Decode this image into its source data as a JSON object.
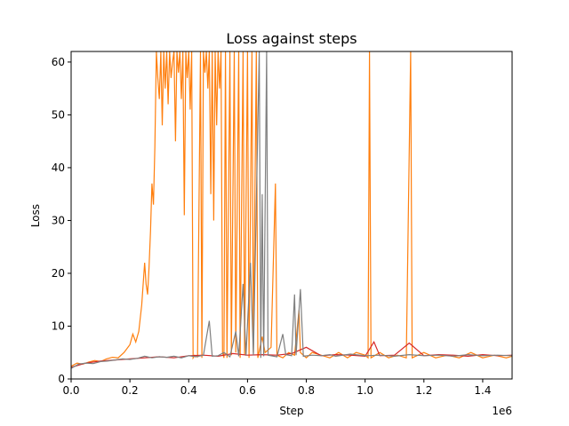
{
  "chart_data": {
    "type": "line",
    "title": "Loss against steps",
    "xlabel": "Step",
    "ylabel": "Loss",
    "x_offset_label": "1e6",
    "xlim": [
      0,
      1500000
    ],
    "ylim": [
      0,
      62
    ],
    "x_scale_factor": 1000000,
    "x_ticks": [
      0.0,
      0.2,
      0.4,
      0.6,
      0.8,
      1.0,
      1.2,
      1.4
    ],
    "y_ticks": [
      0,
      10,
      20,
      30,
      40,
      50,
      60
    ],
    "grid": false,
    "series": [
      {
        "color": "#ff7f0e",
        "points": [
          [
            0,
            2.4
          ],
          [
            20000,
            3.0
          ],
          [
            40000,
            2.8
          ],
          [
            60000,
            3.2
          ],
          [
            80000,
            3.5
          ],
          [
            100000,
            3.3
          ],
          [
            120000,
            3.8
          ],
          [
            140000,
            4.1
          ],
          [
            160000,
            4.0
          ],
          [
            180000,
            5.0
          ],
          [
            200000,
            6.5
          ],
          [
            210000,
            8.5
          ],
          [
            220000,
            7.0
          ],
          [
            230000,
            9.0
          ],
          [
            240000,
            14.0
          ],
          [
            250000,
            22.0
          ],
          [
            255000,
            18.0
          ],
          [
            260000,
            16.0
          ],
          [
            265000,
            21.0
          ],
          [
            270000,
            28.0
          ],
          [
            275000,
            37.0
          ],
          [
            280000,
            33.0
          ],
          [
            285000,
            44.0
          ],
          [
            290000,
            62.0
          ],
          [
            295000,
            57.0
          ],
          [
            300000,
            53.0
          ],
          [
            305000,
            62.0
          ],
          [
            310000,
            48.0
          ],
          [
            315000,
            62.0
          ],
          [
            320000,
            55.0
          ],
          [
            325000,
            62.0
          ],
          [
            330000,
            52.0
          ],
          [
            335000,
            62.0
          ],
          [
            340000,
            57.0
          ],
          [
            345000,
            60.0
          ],
          [
            350000,
            62.0
          ],
          [
            355000,
            45.0
          ],
          [
            360000,
            62.0
          ],
          [
            365000,
            58.0
          ],
          [
            370000,
            62.0
          ],
          [
            375000,
            53.0
          ],
          [
            380000,
            62.0
          ],
          [
            385000,
            31.0
          ],
          [
            390000,
            62.0
          ],
          [
            395000,
            57.0
          ],
          [
            400000,
            62.0
          ],
          [
            405000,
            51.0
          ],
          [
            410000,
            62.0
          ],
          [
            415000,
            4.0
          ],
          [
            420000,
            4.5
          ],
          [
            430000,
            4.2
          ],
          [
            440000,
            62.0
          ],
          [
            445000,
            4.0
          ],
          [
            450000,
            62.0
          ],
          [
            455000,
            58.0
          ],
          [
            460000,
            62.0
          ],
          [
            465000,
            55.0
          ],
          [
            470000,
            62.0
          ],
          [
            475000,
            35.0
          ],
          [
            480000,
            62.0
          ],
          [
            485000,
            30.0
          ],
          [
            490000,
            62.0
          ],
          [
            495000,
            48.0
          ],
          [
            500000,
            62.0
          ],
          [
            505000,
            55.0
          ],
          [
            510000,
            62.0
          ],
          [
            515000,
            5.0
          ],
          [
            520000,
            4.0
          ],
          [
            525000,
            62.0
          ],
          [
            530000,
            4.0
          ],
          [
            540000,
            62.0
          ],
          [
            545000,
            4.5
          ],
          [
            555000,
            62.0
          ],
          [
            560000,
            5.0
          ],
          [
            570000,
            62.0
          ],
          [
            575000,
            4.0
          ],
          [
            585000,
            62.0
          ],
          [
            590000,
            4.5
          ],
          [
            600000,
            62.0
          ],
          [
            605000,
            4.0
          ],
          [
            615000,
            62.0
          ],
          [
            620000,
            5.0
          ],
          [
            630000,
            62.0
          ],
          [
            635000,
            4.0
          ],
          [
            650000,
            8.0
          ],
          [
            660000,
            5.0
          ],
          [
            680000,
            6.0
          ],
          [
            695000,
            37.0
          ],
          [
            700000,
            4.5
          ],
          [
            720000,
            4.0
          ],
          [
            740000,
            5.0
          ],
          [
            760000,
            4.5
          ],
          [
            775000,
            13.0
          ],
          [
            780000,
            5.0
          ],
          [
            800000,
            4.0
          ],
          [
            820000,
            5.0
          ],
          [
            850000,
            4.5
          ],
          [
            880000,
            4.0
          ],
          [
            910000,
            5.0
          ],
          [
            940000,
            4.0
          ],
          [
            970000,
            5.0
          ],
          [
            1000000,
            4.5
          ],
          [
            1010000,
            4.0
          ],
          [
            1015000,
            62.0
          ],
          [
            1020000,
            4.0
          ],
          [
            1050000,
            5.0
          ],
          [
            1080000,
            4.0
          ],
          [
            1110000,
            4.5
          ],
          [
            1140000,
            4.0
          ],
          [
            1155000,
            62.0
          ],
          [
            1160000,
            4.0
          ],
          [
            1200000,
            5.0
          ],
          [
            1240000,
            4.0
          ],
          [
            1280000,
            4.5
          ],
          [
            1320000,
            4.0
          ],
          [
            1360000,
            5.0
          ],
          [
            1400000,
            4.0
          ],
          [
            1440000,
            4.5
          ],
          [
            1480000,
            4.0
          ],
          [
            1500000,
            4.3
          ]
        ]
      },
      {
        "color": "#d62728",
        "points": [
          [
            0,
            2.2
          ],
          [
            50000,
            3.0
          ],
          [
            100000,
            3.4
          ],
          [
            150000,
            3.6
          ],
          [
            200000,
            3.8
          ],
          [
            250000,
            4.0
          ],
          [
            300000,
            4.2
          ],
          [
            350000,
            4.0
          ],
          [
            400000,
            4.4
          ],
          [
            450000,
            4.5
          ],
          [
            500000,
            4.3
          ],
          [
            550000,
            4.8
          ],
          [
            600000,
            4.5
          ],
          [
            650000,
            4.6
          ],
          [
            700000,
            4.5
          ],
          [
            750000,
            4.8
          ],
          [
            800000,
            6.0
          ],
          [
            850000,
            4.4
          ],
          [
            900000,
            4.6
          ],
          [
            950000,
            4.5
          ],
          [
            1000000,
            4.3
          ],
          [
            1030000,
            7.0
          ],
          [
            1050000,
            4.4
          ],
          [
            1100000,
            4.5
          ],
          [
            1150000,
            6.8
          ],
          [
            1200000,
            4.4
          ],
          [
            1250000,
            4.6
          ],
          [
            1300000,
            4.5
          ],
          [
            1350000,
            4.3
          ],
          [
            1400000,
            4.6
          ],
          [
            1450000,
            4.4
          ],
          [
            1500000,
            4.5
          ]
        ]
      },
      {
        "color": "#7f7f7f",
        "points": [
          [
            0,
            2.0
          ],
          [
            25000,
            2.8
          ],
          [
            50000,
            3.0
          ],
          [
            75000,
            2.9
          ],
          [
            100000,
            3.3
          ],
          [
            125000,
            3.4
          ],
          [
            150000,
            3.6
          ],
          [
            175000,
            3.8
          ],
          [
            200000,
            3.7
          ],
          [
            225000,
            3.9
          ],
          [
            250000,
            4.3
          ],
          [
            275000,
            4.0
          ],
          [
            300000,
            4.2
          ],
          [
            325000,
            4.1
          ],
          [
            350000,
            4.3
          ],
          [
            375000,
            4.0
          ],
          [
            400000,
            4.4
          ],
          [
            425000,
            4.2
          ],
          [
            450000,
            4.5
          ],
          [
            470000,
            11.0
          ],
          [
            480000,
            4.3
          ],
          [
            500000,
            4.4
          ],
          [
            520000,
            5.0
          ],
          [
            540000,
            4.2
          ],
          [
            560000,
            9.0
          ],
          [
            570000,
            4.3
          ],
          [
            585000,
            18.0
          ],
          [
            595000,
            4.4
          ],
          [
            610000,
            22.0
          ],
          [
            620000,
            4.5
          ],
          [
            640000,
            62.0
          ],
          [
            645000,
            4.0
          ],
          [
            650000,
            35.0
          ],
          [
            655000,
            4.3
          ],
          [
            665000,
            62.0
          ],
          [
            670000,
            4.5
          ],
          [
            700000,
            4.2
          ],
          [
            720000,
            8.5
          ],
          [
            730000,
            4.6
          ],
          [
            750000,
            4.4
          ],
          [
            760000,
            16.0
          ],
          [
            765000,
            4.5
          ],
          [
            780000,
            17.0
          ],
          [
            790000,
            4.3
          ],
          [
            820000,
            4.5
          ],
          [
            850000,
            4.4
          ],
          [
            880000,
            4.6
          ],
          [
            900000,
            4.3
          ],
          [
            950000,
            4.7
          ],
          [
            1000000,
            4.4
          ],
          [
            1050000,
            4.5
          ],
          [
            1100000,
            4.3
          ],
          [
            1150000,
            4.6
          ],
          [
            1200000,
            4.4
          ],
          [
            1250000,
            4.5
          ],
          [
            1300000,
            4.3
          ],
          [
            1350000,
            4.6
          ],
          [
            1400000,
            4.4
          ],
          [
            1450000,
            4.5
          ],
          [
            1500000,
            4.4
          ]
        ]
      }
    ]
  }
}
